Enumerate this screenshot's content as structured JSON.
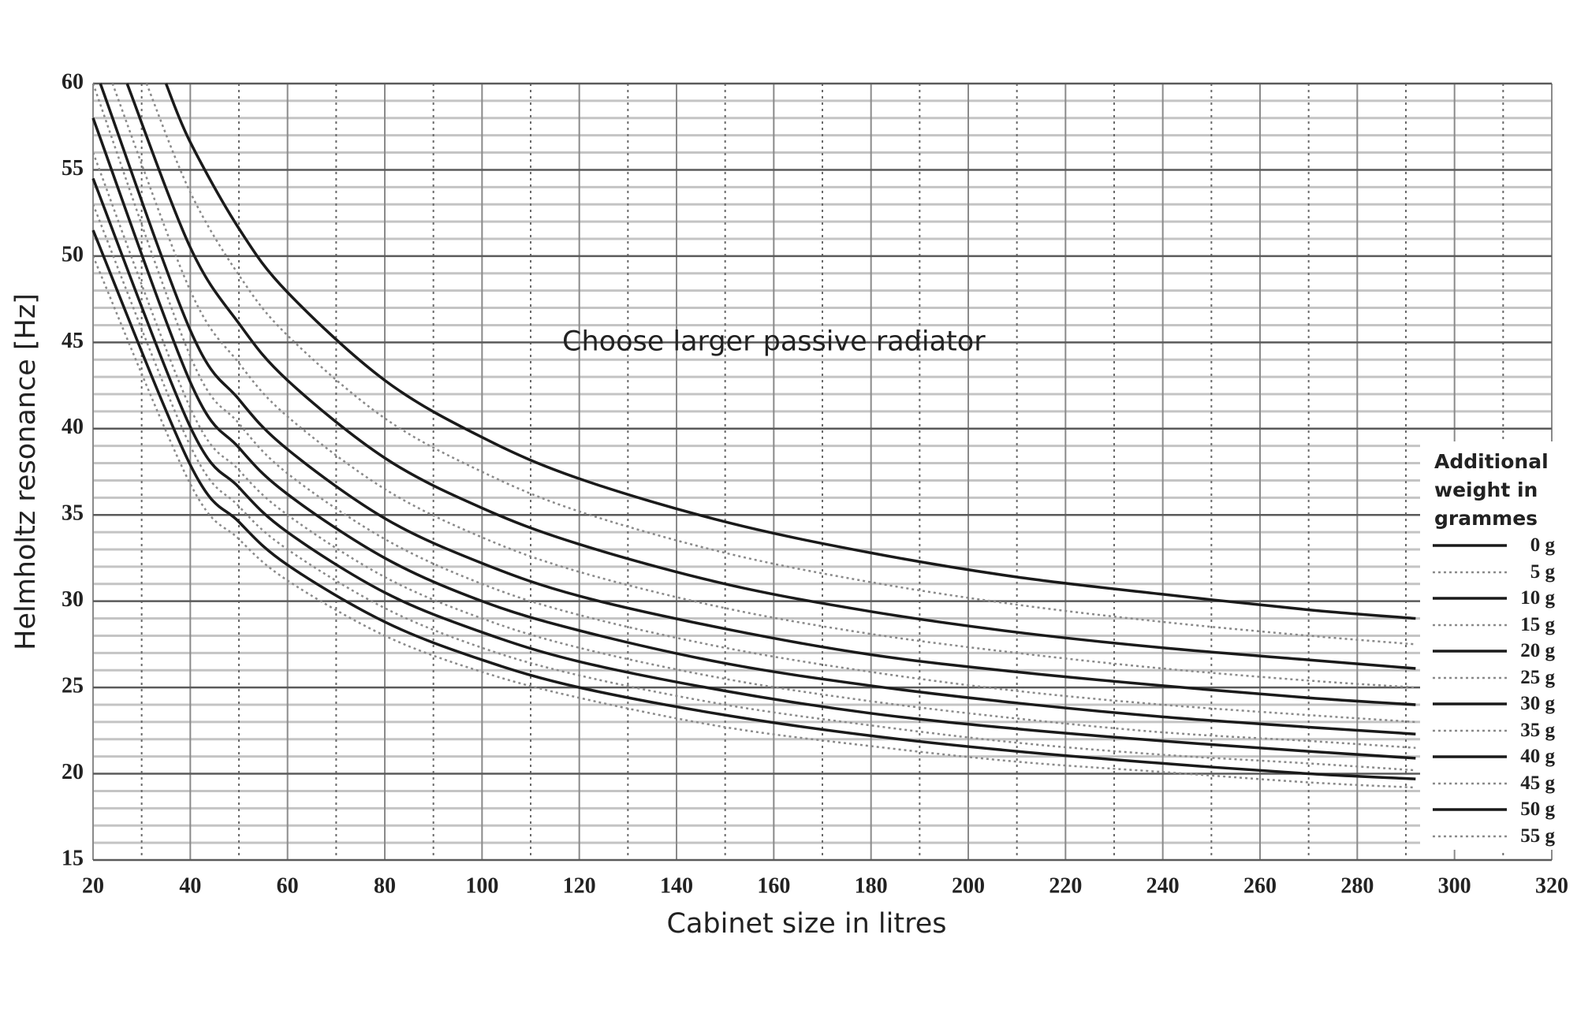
{
  "chart_data": {
    "type": "line",
    "xlabel": "Cabinet size in litres",
    "ylabel": "Helmholtz resonance [Hz]",
    "annotation": {
      "text": "Choose larger passive radiator",
      "x": 160,
      "y": 45
    },
    "legend_title": "Additional weight in grammes",
    "legend": "lower right",
    "xlim": [
      20,
      320
    ],
    "ylim": [
      15,
      60
    ],
    "xticks": [
      20,
      40,
      60,
      80,
      100,
      120,
      140,
      160,
      180,
      200,
      220,
      240,
      260,
      280,
      300,
      320
    ],
    "yticks": [
      15,
      20,
      25,
      30,
      35,
      40,
      45,
      50,
      55,
      60
    ],
    "xminorticks": [
      30,
      50,
      70,
      90,
      110,
      130,
      150,
      170,
      190,
      210,
      230,
      250,
      270,
      290,
      310
    ],
    "yminorticks": [
      16,
      17,
      18,
      19,
      21,
      22,
      23,
      24,
      26,
      27,
      28,
      29,
      31,
      32,
      33,
      34,
      36,
      37,
      38,
      39,
      41,
      42,
      43,
      44,
      46,
      47,
      48,
      49,
      51,
      52,
      53,
      54,
      56,
      57,
      58,
      59
    ],
    "grid": true,
    "series": [
      {
        "name": "0 g",
        "color": "#1a1a1a",
        "style": "solid",
        "x": [
          35,
          40,
          50,
          60,
          80,
          100,
          120,
          150,
          180,
          210,
          240,
          270,
          292
        ],
        "values": [
          60,
          56.6,
          51.6,
          47.9,
          42.8,
          39.5,
          37.1,
          34.6,
          32.8,
          31.4,
          30.4,
          29.5,
          29.0
        ]
      },
      {
        "name": "5 g",
        "color": "#8a8a8a",
        "style": "dotted",
        "x": [
          31,
          40,
          50,
          60,
          80,
          100,
          120,
          150,
          180,
          210,
          240,
          270,
          292
        ],
        "values": [
          60,
          53.7,
          48.9,
          45.4,
          40.6,
          37.5,
          35.2,
          32.8,
          31.1,
          29.8,
          28.8,
          28.0,
          27.5
        ]
      },
      {
        "name": "10 g",
        "color": "#1a1a1a",
        "style": "solid",
        "x": [
          27,
          40,
          50,
          60,
          80,
          100,
          120,
          150,
          180,
          210,
          240,
          270,
          292
        ],
        "values": [
          60,
          50.5,
          46.1,
          42.8,
          38.3,
          35.4,
          33.3,
          31.0,
          29.4,
          28.2,
          27.3,
          26.6,
          26.1
        ]
      },
      {
        "name": "15 g",
        "color": "#8a8a8a",
        "style": "dotted",
        "x": [
          24,
          40,
          50,
          60,
          80,
          100,
          120,
          150,
          180,
          210,
          240,
          270,
          292
        ],
        "values": [
          60,
          48.0,
          43.8,
          40.7,
          36.5,
          33.7,
          31.7,
          29.6,
          28.1,
          27.0,
          26.1,
          25.4,
          25.0
        ]
      },
      {
        "name": "20 g",
        "color": "#1a1a1a",
        "style": "solid",
        "x": [
          21.5,
          40,
          50,
          60,
          80,
          100,
          120,
          150,
          180,
          210,
          240,
          270,
          292
        ],
        "values": [
          60,
          45.7,
          41.7,
          38.8,
          34.8,
          32.2,
          30.3,
          28.4,
          26.9,
          25.9,
          25.1,
          24.4,
          24.0
        ]
      },
      {
        "name": "25 g",
        "color": "#8a8a8a",
        "style": "dotted",
        "x": [
          20,
          40,
          50,
          60,
          80,
          100,
          120,
          150,
          180,
          210,
          240,
          270,
          292
        ],
        "values": [
          60,
          44.2,
          40.3,
          37.4,
          33.6,
          31.0,
          29.2,
          27.3,
          25.9,
          24.8,
          24.0,
          23.4,
          23.0
        ]
      },
      {
        "name": "30 g",
        "color": "#1a1a1a",
        "style": "solid",
        "x": [
          20,
          40,
          50,
          60,
          80,
          100,
          120,
          150,
          180,
          210,
          240,
          270,
          292
        ],
        "values": [
          58,
          42.7,
          38.9,
          36.2,
          32.5,
          30.0,
          28.3,
          26.4,
          25.1,
          24.1,
          23.3,
          22.7,
          22.3
        ]
      },
      {
        "name": "35 g",
        "color": "#8a8a8a",
        "style": "dotted",
        "x": [
          20,
          40,
          50,
          60,
          80,
          100,
          120,
          150,
          180,
          210,
          240,
          270,
          292
        ],
        "values": [
          56,
          41.2,
          37.6,
          35.0,
          31.4,
          29.0,
          27.3,
          25.5,
          24.2,
          23.2,
          22.4,
          21.9,
          21.5
        ]
      },
      {
        "name": "40 g",
        "color": "#1a1a1a",
        "style": "solid",
        "x": [
          20,
          40,
          50,
          60,
          80,
          100,
          120,
          150,
          180,
          210,
          240,
          270,
          292
        ],
        "values": [
          54.5,
          40.1,
          36.6,
          34.0,
          30.5,
          28.2,
          26.5,
          24.8,
          23.5,
          22.6,
          21.9,
          21.3,
          20.9
        ]
      },
      {
        "name": "45 g",
        "color": "#8a8a8a",
        "style": "dotted",
        "x": [
          20,
          40,
          50,
          60,
          80,
          100,
          120,
          150,
          180,
          210,
          240,
          270,
          292
        ],
        "values": [
          53,
          39.0,
          35.5,
          33.0,
          29.6,
          27.3,
          25.7,
          24.0,
          22.8,
          21.8,
          21.1,
          20.6,
          20.2
        ]
      },
      {
        "name": "50 g",
        "color": "#1a1a1a",
        "style": "solid",
        "x": [
          20,
          40,
          50,
          60,
          80,
          100,
          120,
          150,
          180,
          210,
          240,
          270,
          292
        ],
        "values": [
          51.5,
          37.9,
          34.6,
          32.1,
          28.8,
          26.6,
          25.0,
          23.4,
          22.2,
          21.3,
          20.6,
          20.0,
          19.7
        ]
      },
      {
        "name": "55 g",
        "color": "#8a8a8a",
        "style": "dotted",
        "x": [
          20,
          40,
          50,
          60,
          80,
          100,
          120,
          150,
          180,
          210,
          240,
          270,
          292
        ],
        "values": [
          50,
          36.8,
          33.6,
          31.2,
          28.0,
          25.9,
          24.4,
          22.7,
          21.6,
          20.7,
          20.1,
          19.5,
          19.2
        ]
      }
    ]
  }
}
